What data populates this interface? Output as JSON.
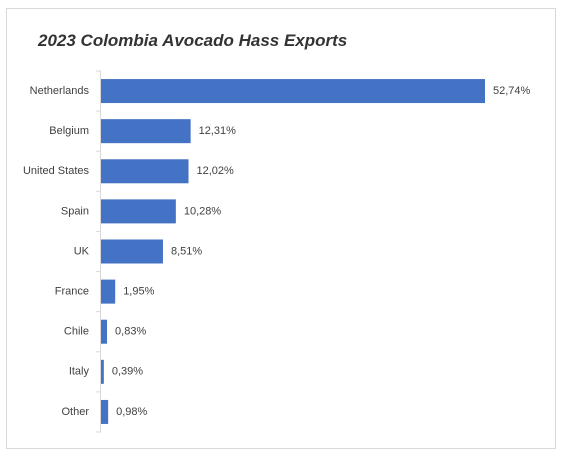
{
  "chart_data": {
    "type": "bar",
    "orientation": "horizontal",
    "title": "2023 Colombia Avocado Hass Exports",
    "categories": [
      "Netherlands",
      "Belgium",
      "United States",
      "Spain",
      "UK",
      "France",
      "Chile",
      "Italy",
      "Other"
    ],
    "values": [
      52.74,
      12.31,
      12.02,
      10.28,
      8.51,
      1.95,
      0.83,
      0.39,
      0.98
    ],
    "value_labels": [
      "52,74%",
      "12,31%",
      "12,02%",
      "10,28%",
      "8,51%",
      "1,95%",
      "0,83%",
      "0,39%",
      "0,98%"
    ],
    "color": "#4472c4"
  }
}
